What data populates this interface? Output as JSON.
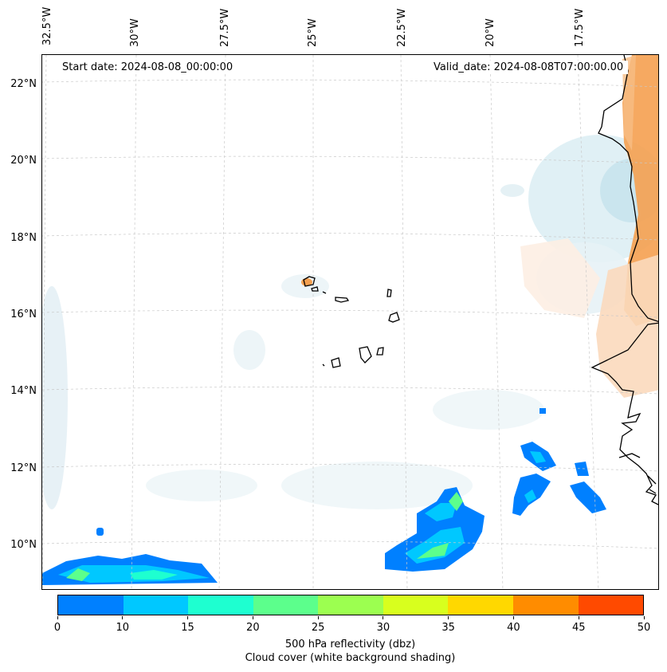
{
  "map": {
    "start_date": "Start date: 2024-08-08_00:00:00",
    "valid_date": "Valid_date: 2024-08-08T07:00:00.00",
    "lon_labels": [
      "32.5°W",
      "30°W",
      "27.5°W",
      "25°W",
      "22.5°W",
      "20°W",
      "17.5°W"
    ],
    "lat_labels": [
      "22°N",
      "20°N",
      "18°N",
      "16°N",
      "14°N",
      "12°N",
      "10°N"
    ]
  },
  "colorbar": {
    "ticks": [
      "0",
      "10",
      "15",
      "20",
      "25",
      "30",
      "35",
      "40",
      "45",
      "50"
    ],
    "colors": [
      "#0080ff",
      "#00c8ff",
      "#1effd0",
      "#5cff8c",
      "#9cff50",
      "#d8ff1e",
      "#ffd800",
      "#ff8c00",
      "#ff4a00"
    ],
    "title_line1": "500 hPa reflectivity (dbz)",
    "title_line2": "Cloud cover (white background shading)"
  }
}
